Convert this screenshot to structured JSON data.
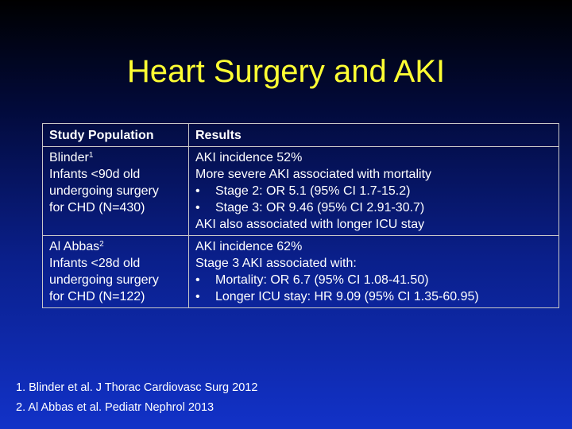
{
  "title": "Heart Surgery and AKI",
  "table": {
    "headers": [
      "Study Population",
      "Results"
    ],
    "rows": [
      {
        "author": "Blinder",
        "ref": "1",
        "population": [
          "Infants <90d old",
          "undergoing surgery",
          "for CHD (N=430)"
        ],
        "results": [
          {
            "bullet": false,
            "text": "AKI incidence 52%"
          },
          {
            "bullet": false,
            "text": "More severe AKI associated with mortality"
          },
          {
            "bullet": true,
            "text": "Stage 2: OR 5.1 (95% CI 1.7-15.2)"
          },
          {
            "bullet": true,
            "text": "Stage 3: OR 9.46 (95% CI 2.91-30.7)"
          },
          {
            "bullet": false,
            "text": "AKI also associated with longer ICU stay"
          }
        ]
      },
      {
        "author": "Al Abbas",
        "ref": "2",
        "population": [
          "Infants <28d old",
          "undergoing surgery",
          "for CHD (N=122)"
        ],
        "results": [
          {
            "bullet": false,
            "text": "AKI incidence 62%"
          },
          {
            "bullet": false,
            "text": "Stage 3 AKI associated with:"
          },
          {
            "bullet": true,
            "text": "Mortality: OR 6.7 (95% CI 1.08-41.50)"
          },
          {
            "bullet": true,
            "text": "Longer ICU stay: HR 9.09 (95% CI 1.35-60.95)"
          }
        ]
      }
    ]
  },
  "bullet_char": "•",
  "references": [
    "1. Blinder et al.  J Thorac Cardiovasc Surg 2012",
    "2. Al Abbas et al.  Pediatr Nephrol 2013"
  ],
  "colors": {
    "title": "#ffff33",
    "text": "#ffffff",
    "border": "#c8c8c8"
  }
}
